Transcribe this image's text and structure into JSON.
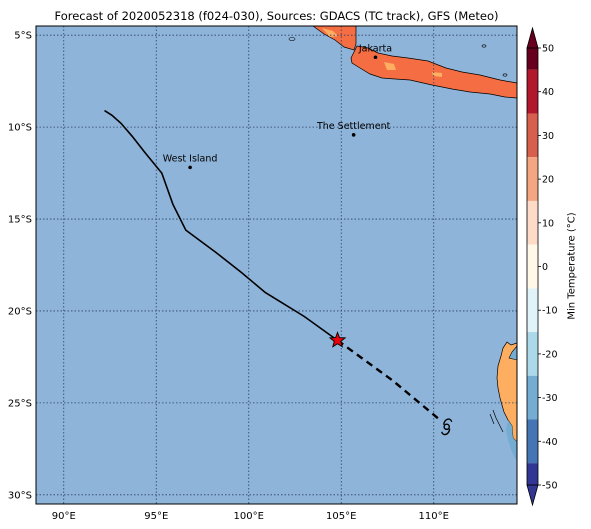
{
  "title": "Forecast of 2020052318 (f024-030), Sources: GDACS (TC track), GFS (Meteo)",
  "map": {
    "lon_range": [
      88.5,
      114.5
    ],
    "lat_range": [
      -30.5,
      -4.5
    ],
    "ocean_color": "#8fb4d9",
    "land_color_warm": "#f46d43",
    "land_color_mild": "#fdae61",
    "x_ticks": [
      {
        "value": 90,
        "label": "90°E"
      },
      {
        "value": 95,
        "label": "95°E"
      },
      {
        "value": 100,
        "label": "100°E"
      },
      {
        "value": 105,
        "label": "105°E"
      },
      {
        "value": 110,
        "label": "110°E"
      }
    ],
    "y_ticks": [
      {
        "value": -5,
        "label": "5°S"
      },
      {
        "value": -10,
        "label": "10°S"
      },
      {
        "value": -15,
        "label": "15°S"
      },
      {
        "value": -20,
        "label": "20°S"
      },
      {
        "value": -25,
        "label": "25°S"
      },
      {
        "value": -30,
        "label": "30°S"
      }
    ],
    "places": [
      {
        "name": "Jakarta",
        "lon": 106.85,
        "lat": -6.2
      },
      {
        "name": "The Settlement",
        "lon": 105.67,
        "lat": -10.42
      },
      {
        "name": "West Island",
        "lon": 96.83,
        "lat": -12.19
      }
    ],
    "track_past": [
      {
        "lon": 92.2,
        "lat": -9.1
      },
      {
        "lon": 92.6,
        "lat": -9.35
      },
      {
        "lon": 93.1,
        "lat": -9.8
      },
      {
        "lon": 93.7,
        "lat": -10.5
      },
      {
        "lon": 94.4,
        "lat": -11.4
      },
      {
        "lon": 95.3,
        "lat": -12.5
      },
      {
        "lon": 95.9,
        "lat": -14.2
      },
      {
        "lon": 96.6,
        "lat": -15.6
      },
      {
        "lon": 98.2,
        "lat": -16.8
      },
      {
        "lon": 99.6,
        "lat": -17.9
      },
      {
        "lon": 100.9,
        "lat": -19.0
      },
      {
        "lon": 103.0,
        "lat": -20.3
      },
      {
        "lon": 104.8,
        "lat": -21.6
      }
    ],
    "track_forecast": [
      {
        "lon": 104.8,
        "lat": -21.6
      },
      {
        "lon": 107.8,
        "lat": -23.8
      },
      {
        "lon": 110.3,
        "lat": -25.9
      }
    ],
    "current_position": {
      "lon": 104.8,
      "lat": -21.6,
      "marker_color": "#e8000b"
    },
    "cyclone_symbol_position": {
      "lon": 110.7,
      "lat": -26.3
    }
  },
  "colorbar": {
    "label": "Min Temperature (°C)",
    "ticks": [
      50,
      40,
      30,
      20,
      10,
      0,
      -10,
      -20,
      -30,
      -40,
      -50
    ],
    "colors": [
      "#67001f",
      "#b2182b",
      "#d6604d",
      "#f4a582",
      "#fddbc7",
      "#fff8e8",
      "#e0f3f8",
      "#abd9e9",
      "#74add1",
      "#4575b4",
      "#313695"
    ]
  }
}
